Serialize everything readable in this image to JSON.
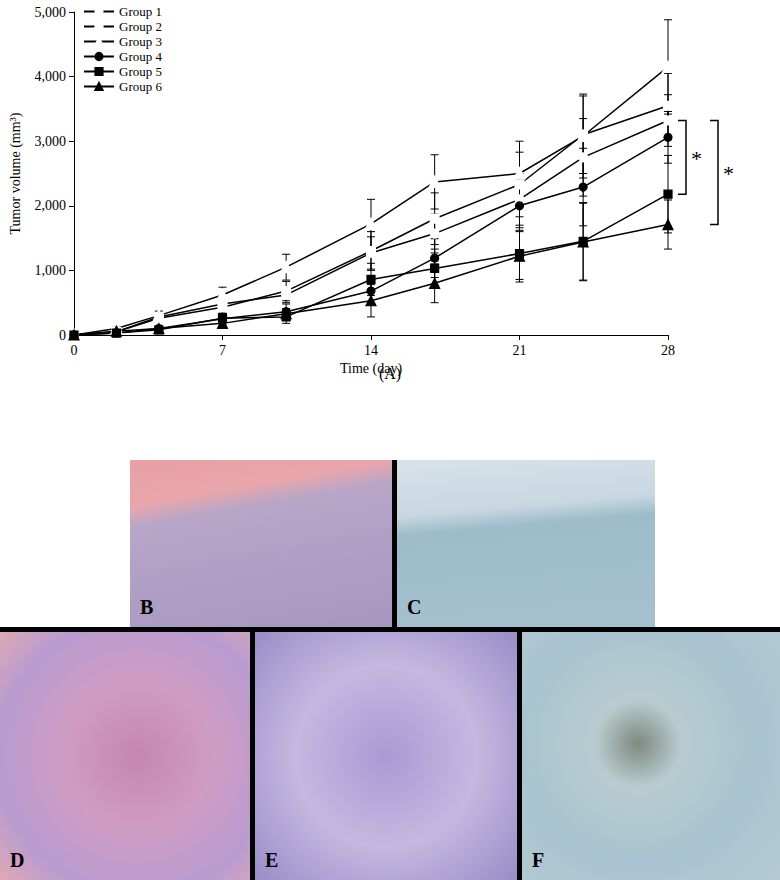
{
  "chart_data": {
    "type": "line",
    "title": "(A)",
    "x_label": "Time (day)",
    "y_label": "Tumor volume (mm³)",
    "x": [
      0,
      2,
      4,
      7,
      10,
      14,
      17,
      21,
      24,
      28
    ],
    "xlim": [
      0,
      28
    ],
    "xticks": [
      0,
      7,
      14,
      21,
      28
    ],
    "ylim": [
      0,
      5000
    ],
    "yticks": [
      0,
      {
        "value": 1000,
        "label": "1,000"
      },
      {
        "value": 2000,
        "label": "2,000"
      },
      {
        "value": 3000,
        "label": "3,000"
      },
      {
        "value": 4000,
        "label": "4,000"
      },
      {
        "value": 5000,
        "label": "5,000"
      }
    ],
    "grid": false,
    "legend": "upper left",
    "series": [
      {
        "name": "Group 1",
        "color": "#000000",
        "marker": "open circle",
        "values": [
          0,
          50,
          280,
          480,
          620,
          1270,
          1570,
          2100,
          2750,
          3320
        ],
        "errors": [
          0,
          20,
          50,
          100,
          120,
          250,
          300,
          400,
          600,
          400
        ]
      },
      {
        "name": "Group 2",
        "color": "#000000",
        "marker": "open square",
        "values": [
          0,
          50,
          260,
          430,
          680,
          1300,
          1800,
          2330,
          3100,
          3550
        ],
        "errors": [
          0,
          20,
          50,
          100,
          150,
          300,
          400,
          500,
          600,
          500
        ]
      },
      {
        "name": "Group 3",
        "color": "#000000",
        "marker": "open triangle",
        "values": [
          0,
          100,
          300,
          620,
          1050,
          1720,
          2370,
          2500,
          3080,
          4150
        ],
        "errors": [
          0,
          20,
          70,
          120,
          200,
          380,
          420,
          500,
          650,
          730
        ]
      },
      {
        "name": "Group 4",
        "color": "#000000",
        "marker": "filled circle",
        "values": [
          0,
          30,
          100,
          250,
          360,
          680,
          1190,
          2000,
          2290,
          3060
        ],
        "errors": [
          0,
          10,
          30,
          80,
          120,
          200,
          300,
          400,
          600,
          400
        ]
      },
      {
        "name": "Group 5",
        "color": "#000000",
        "marker": "filled square",
        "values": [
          0,
          30,
          80,
          260,
          280,
          860,
          1030,
          1260,
          1450,
          2180
        ],
        "errors": [
          0,
          10,
          30,
          80,
          100,
          250,
          300,
          400,
          600,
          600
        ]
      },
      {
        "name": "Group 6",
        "color": "#000000",
        "marker": "filled triangle",
        "values": [
          0,
          60,
          100,
          180,
          330,
          530,
          800,
          1220,
          1440,
          1710
        ],
        "errors": [
          0,
          10,
          30,
          60,
          80,
          250,
          300,
          400,
          600,
          380
        ]
      }
    ],
    "annotations": [
      {
        "text": "*",
        "from": 3320,
        "to": 2180
      },
      {
        "text": "*",
        "from": 3320,
        "to": 1710
      }
    ]
  },
  "panel_labels": [
    "B",
    "C",
    "D",
    "E",
    "F"
  ]
}
